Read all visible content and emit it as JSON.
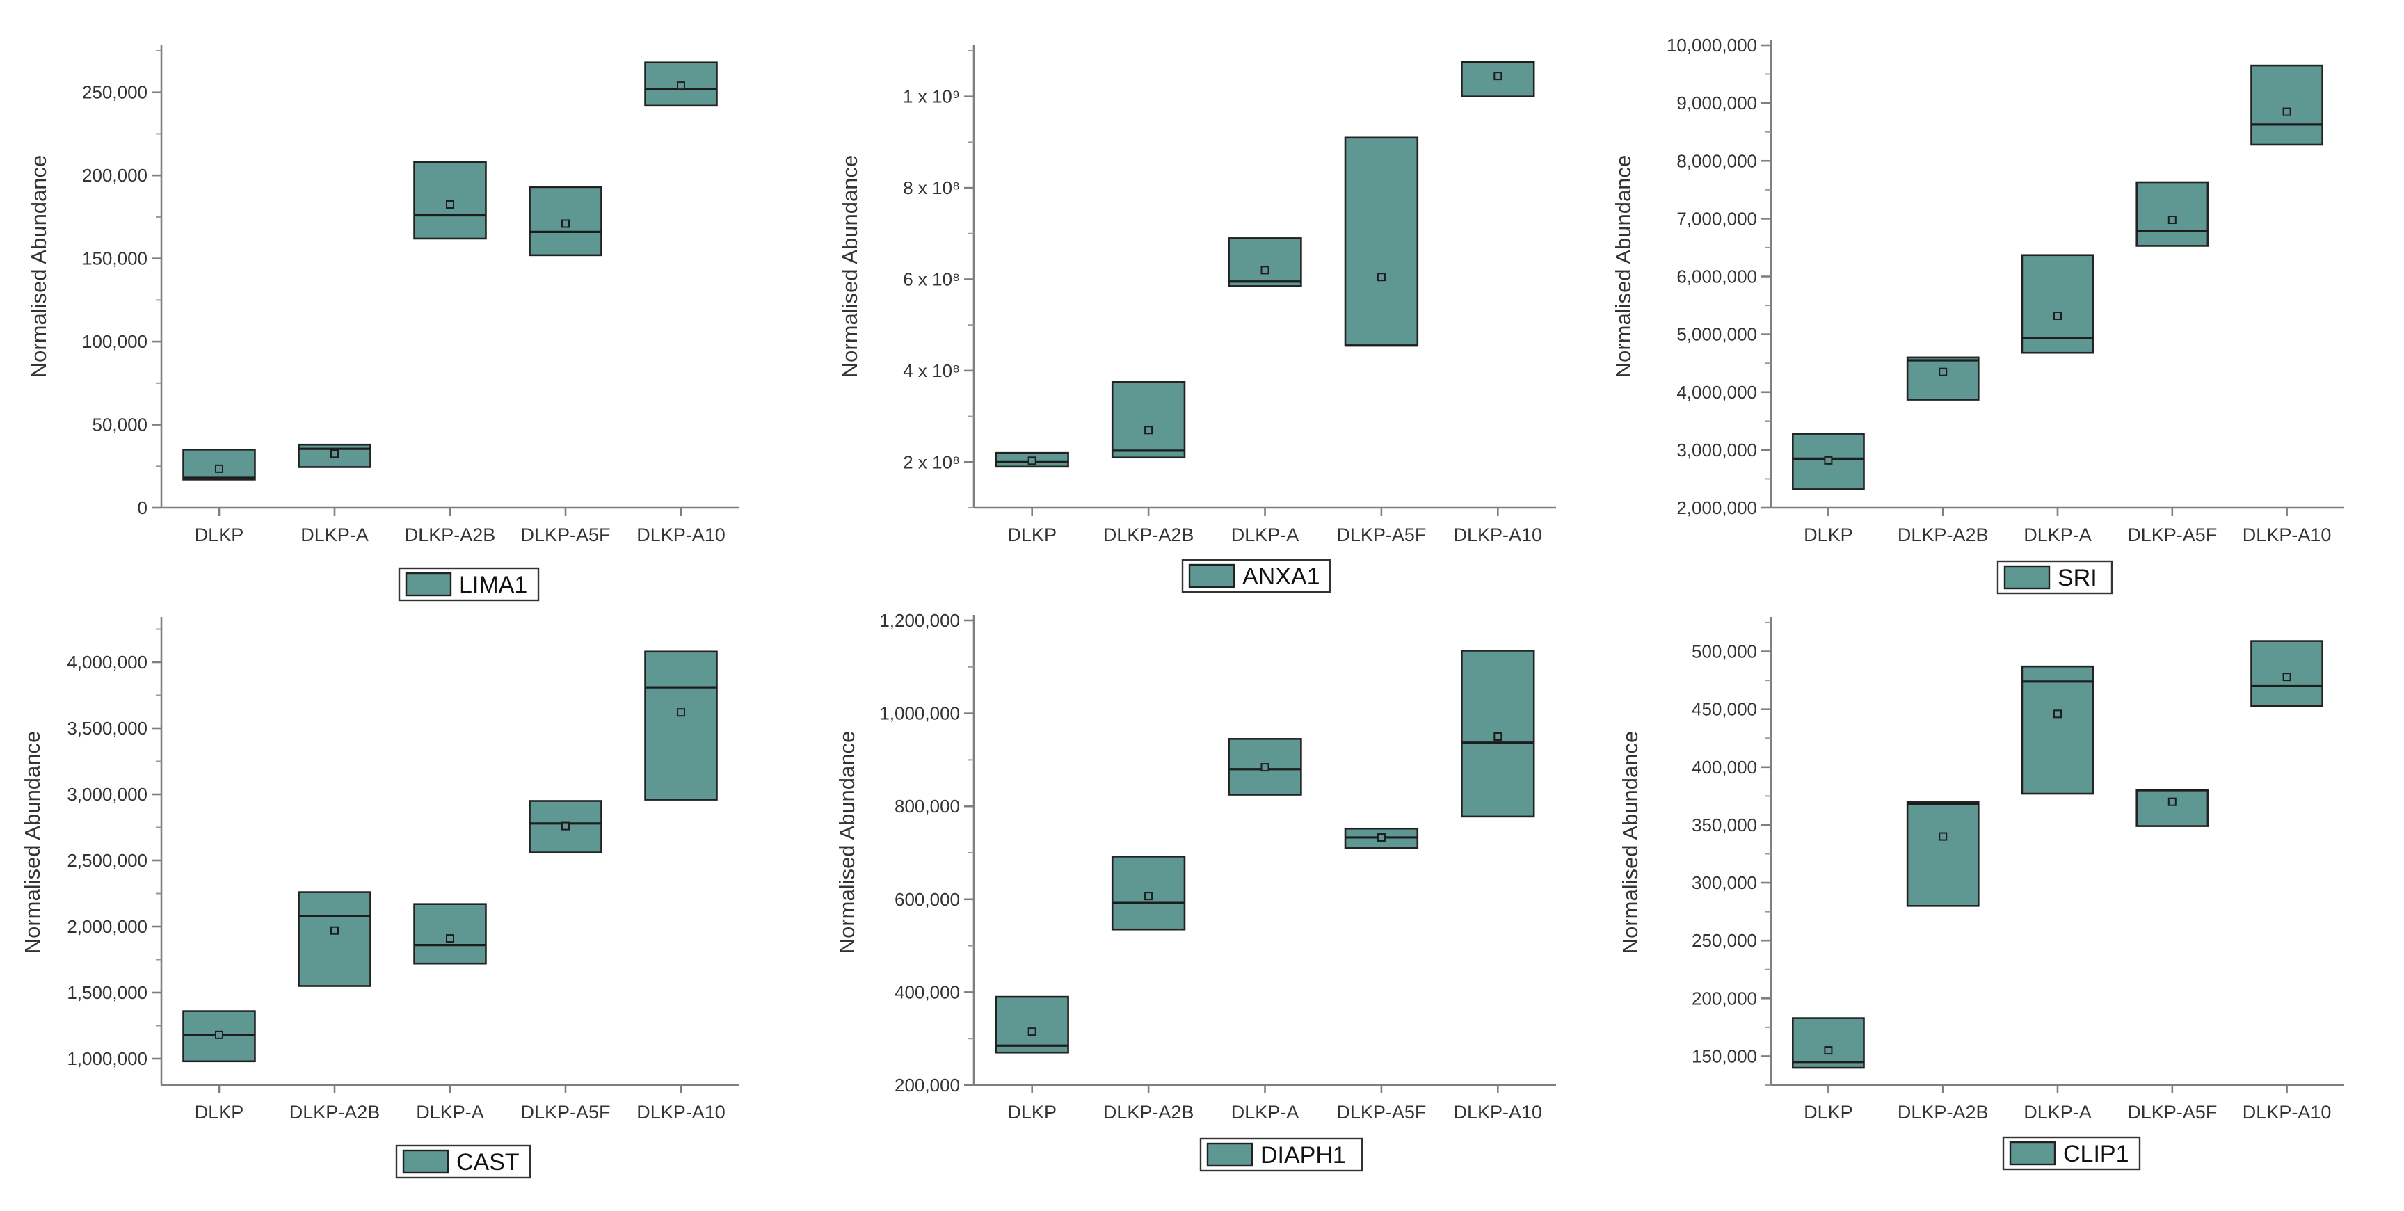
{
  "chart_data": [
    {
      "type": "box",
      "title": "",
      "ylabel": "Normalised Abundance",
      "legend": "LIMA1",
      "legend_position": "bottom-center",
      "ylim": [
        0,
        275000
      ],
      "yticks": [
        0,
        50000,
        100000,
        150000,
        200000,
        250000
      ],
      "ytick_labels": [
        "0",
        "50,000",
        "100,000",
        "150,000",
        "200,000",
        "250,000"
      ],
      "categories": [
        "DLKP",
        "DLKP-A",
        "DLKP-A2B",
        "DLKP-A5F",
        "DLKP-A10"
      ],
      "boxes": [
        {
          "q1": 17000,
          "median": 18000,
          "q3": 35000,
          "mean": 23500
        },
        {
          "q1": 24500,
          "median": 35500,
          "q3": 38000,
          "mean": 32500
        },
        {
          "q1": 162000,
          "median": 176000,
          "q3": 208000,
          "mean": 182500
        },
        {
          "q1": 152000,
          "median": 166000,
          "q3": 193000,
          "mean": 171000
        },
        {
          "q1": 242000,
          "median": 252000,
          "q3": 268000,
          "mean": 254000
        }
      ]
    },
    {
      "type": "box",
      "title": "",
      "ylabel": "Normalised Abundance",
      "legend": "ANXA1",
      "legend_position": "bottom-center",
      "ylim": [
        100000000,
        1100000000
      ],
      "yticks": [
        200000000,
        400000000,
        600000000,
        800000000,
        1000000000
      ],
      "ytick_labels": [
        "2 x 10⁸",
        "4 x 10⁸",
        "6 x 10⁸",
        "8 x 10⁸",
        "1 x 10⁹"
      ],
      "categories": [
        "DLKP",
        "DLKP-A2B",
        "DLKP-A",
        "DLKP-A5F",
        "DLKP-A10"
      ],
      "boxes": [
        {
          "q1": 190000000,
          "median": 200000000,
          "q3": 220000000,
          "mean": 203000000
        },
        {
          "q1": 210000000,
          "median": 225000000,
          "q3": 375000000,
          "mean": 270000000
        },
        {
          "q1": 585000000,
          "median": 595000000,
          "q3": 690000000,
          "mean": 620000000
        },
        {
          "q1": 455000000,
          "median": 455000000,
          "q3": 910000000,
          "mean": 605000000
        },
        {
          "q1": 1000000000,
          "median": 1075000000,
          "q3": 1075000000,
          "mean": 1045000000
        }
      ]
    },
    {
      "type": "box",
      "title": "",
      "ylabel": "Normalised Abundance",
      "legend": "SRI",
      "legend_position": "bottom-center",
      "ylim": [
        2000000,
        10000000
      ],
      "yticks": [
        2000000,
        3000000,
        4000000,
        5000000,
        6000000,
        7000000,
        8000000,
        9000000,
        10000000
      ],
      "ytick_labels": [
        "2,000,000",
        "3,000,000",
        "4,000,000",
        "5,000,000",
        "6,000,000",
        "7,000,000",
        "8,000,000",
        "9,000,000",
        "10,000,000"
      ],
      "categories": [
        "DLKP",
        "DLKP-A2B",
        "DLKP-A",
        "DLKP-A5F",
        "DLKP-A10"
      ],
      "boxes": [
        {
          "q1": 2320000,
          "median": 2850000,
          "q3": 3280000,
          "mean": 2820000
        },
        {
          "q1": 3870000,
          "median": 4550000,
          "q3": 4600000,
          "mean": 4350000
        },
        {
          "q1": 4680000,
          "median": 4930000,
          "q3": 6370000,
          "mean": 5320000
        },
        {
          "q1": 6530000,
          "median": 6790000,
          "q3": 7630000,
          "mean": 6980000
        },
        {
          "q1": 8280000,
          "median": 8630000,
          "q3": 9650000,
          "mean": 8850000
        }
      ]
    },
    {
      "type": "box",
      "title": "",
      "ylabel": "Normalised Abundance",
      "legend": "CAST",
      "legend_position": "bottom-center",
      "ylim": [
        800000,
        4300000
      ],
      "yticks": [
        1000000,
        1500000,
        2000000,
        2500000,
        3000000,
        3500000,
        4000000
      ],
      "ytick_labels": [
        "1,000,000",
        "1,500,000",
        "2,000,000",
        "2,500,000",
        "3,000,000",
        "3,500,000",
        "4,000,000"
      ],
      "categories": [
        "DLKP",
        "DLKP-A2B",
        "DLKP-A",
        "DLKP-A5F",
        "DLKP-A10"
      ],
      "boxes": [
        {
          "q1": 980000,
          "median": 1180000,
          "q3": 1360000,
          "mean": 1180000
        },
        {
          "q1": 1550000,
          "median": 2080000,
          "q3": 2260000,
          "mean": 1970000
        },
        {
          "q1": 1720000,
          "median": 1860000,
          "q3": 2170000,
          "mean": 1910000
        },
        {
          "q1": 2560000,
          "median": 2780000,
          "q3": 2950000,
          "mean": 2760000
        },
        {
          "q1": 2960000,
          "median": 3810000,
          "q3": 4080000,
          "mean": 3620000
        }
      ]
    },
    {
      "type": "box",
      "title": "",
      "ylabel": "Normalised Abundance",
      "legend": "DIAPH1",
      "legend_position": "bottom-center",
      "ylim": [
        200000,
        1200000
      ],
      "yticks": [
        200000,
        400000,
        600000,
        800000,
        1000000,
        1200000
      ],
      "ytick_labels": [
        "200,000",
        "400,000",
        "600,000",
        "800,000",
        "1,000,000",
        "1,200,000"
      ],
      "categories": [
        "DLKP",
        "DLKP-A2B",
        "DLKP-A",
        "DLKP-A5F",
        "DLKP-A10"
      ],
      "boxes": [
        {
          "q1": 270000,
          "median": 285000,
          "q3": 390000,
          "mean": 315000
        },
        {
          "q1": 535000,
          "median": 592000,
          "q3": 692000,
          "mean": 607000
        },
        {
          "q1": 825000,
          "median": 880000,
          "q3": 945000,
          "mean": 884000
        },
        {
          "q1": 710000,
          "median": 733000,
          "q3": 752000,
          "mean": 733000
        },
        {
          "q1": 778000,
          "median": 937000,
          "q3": 1135000,
          "mean": 950000
        }
      ]
    },
    {
      "type": "box",
      "title": "",
      "ylabel": "Normalised Abundance",
      "legend": "CLIP1",
      "legend_position": "bottom-center",
      "ylim": [
        125000,
        525000
      ],
      "yticks": [
        150000,
        200000,
        250000,
        300000,
        350000,
        400000,
        450000,
        500000
      ],
      "ytick_labels": [
        "150,000",
        "200,000",
        "250,000",
        "300,000",
        "350,000",
        "400,000",
        "450,000",
        "500,000"
      ],
      "categories": [
        "DLKP",
        "DLKP-A2B",
        "DLKP-A",
        "DLKP-A5F",
        "DLKP-A10"
      ],
      "boxes": [
        {
          "q1": 140000,
          "median": 145000,
          "q3": 183000,
          "mean": 155000
        },
        {
          "q1": 280000,
          "median": 368000,
          "q3": 370000,
          "mean": 340000
        },
        {
          "q1": 377000,
          "median": 474000,
          "q3": 487000,
          "mean": 446000
        },
        {
          "q1": 349000,
          "median": 380000,
          "q3": 380000,
          "mean": 370000
        },
        {
          "q1": 453000,
          "median": 470000,
          "q3": 509000,
          "mean": 478000
        }
      ]
    }
  ]
}
